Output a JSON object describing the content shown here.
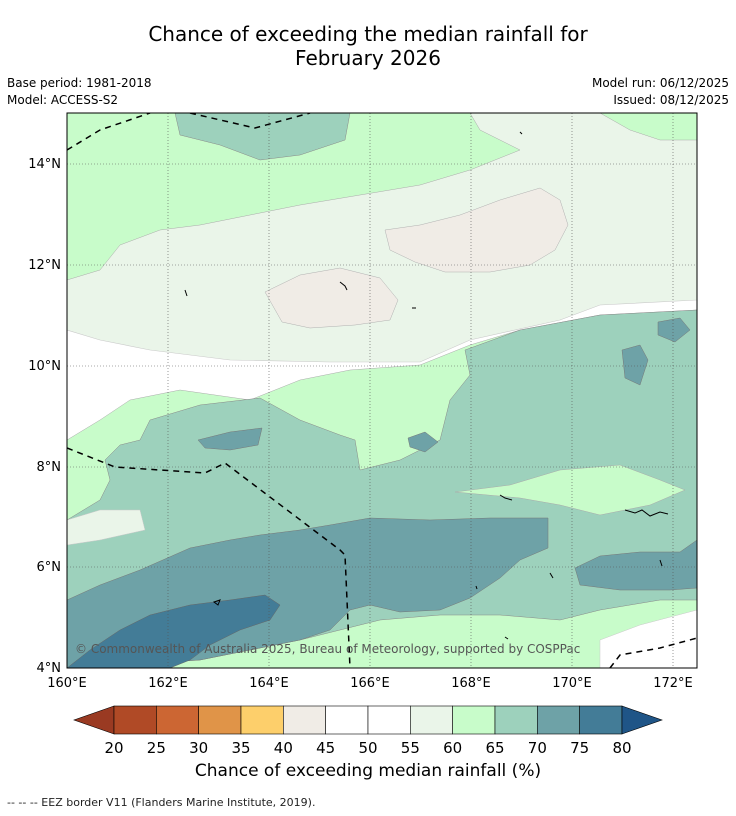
{
  "title_line1": "Chance of exceeding the median rainfall for",
  "title_line2": "February 2026",
  "meta": {
    "base_period": "Base period: 1981-2018",
    "model": "Model: ACCESS-S2",
    "model_run": "Model run: 06/12/2025",
    "issued": "Issued: 08/12/2025"
  },
  "map": {
    "lon_range": [
      160,
      172.5
    ],
    "lat_range": [
      4,
      15
    ],
    "x_ticks": [
      "160°E",
      "162°E",
      "164°E",
      "166°E",
      "168°E",
      "170°E",
      "172°E"
    ],
    "y_ticks": [
      "4°N",
      "6°N",
      "8°N",
      "10°N",
      "12°N",
      "14°N"
    ],
    "copyright": "© Commonwealth of Australia 2025, Bureau of Meteorology, supported by COSPPac"
  },
  "colorbar": {
    "ticks": [
      "20",
      "25",
      "30",
      "35",
      "40",
      "45",
      "50",
      "55",
      "60",
      "65",
      "70",
      "75",
      "80"
    ],
    "colors": [
      "#b04a26",
      "#cc6633",
      "#e09448",
      "#fdcf6b",
      "#f0ece6",
      "#ffffff",
      "#ffffff",
      "#eaf5e9",
      "#c8fcca",
      "#9dd1bc",
      "#6ea2a7",
      "#437c97"
    ],
    "under_color": "#9a3a22",
    "over_color": "#1f5587",
    "label": "Chance of exceeding median rainfall (%)"
  },
  "legend_text": "--  --  -- EEZ border V11 (Flanders Marine Institute, 2019)."
}
